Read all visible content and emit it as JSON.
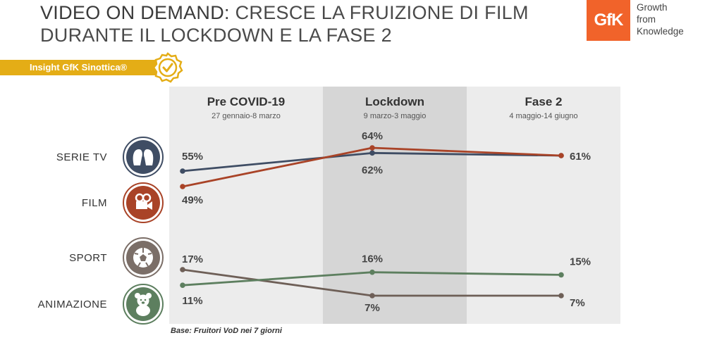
{
  "title": {
    "strong": "VIDEO ON DEMAND:",
    "rest": " CRESCE LA FRUIZIONE DI FILM DURANTE IL LOCKDOWN E LA FASE 2"
  },
  "logo": {
    "mark": "GfK",
    "tagline": [
      "Growth",
      "from",
      "Knowledge"
    ],
    "color": "#f1632a"
  },
  "banner": {
    "label": "Insight GfK Sinottica®",
    "badge_icon": "check-badge-icon",
    "color": "#e4ad16"
  },
  "base_note": "Base: Fruitori VoD nei 7 giorni",
  "chart_data": {
    "type": "line",
    "categories": [
      "Pre COVID-19",
      "Lockdown",
      "Fase 2"
    ],
    "category_dates": [
      "27 gennaio-8 marzo",
      "9 marzo-3 maggio",
      "4 maggio-14 giugno"
    ],
    "series": [
      {
        "name": "SERIE TV",
        "values": [
          55,
          62,
          61
        ],
        "labels": [
          "55%",
          "62%",
          "61%"
        ],
        "color": "#3f4d64",
        "icon": "two-faces-icon",
        "icon_bg": "#3f4d64"
      },
      {
        "name": "FILM",
        "values": [
          49,
          64,
          61
        ],
        "labels": [
          "49%",
          "64%",
          "61%"
        ],
        "color": "#a94327",
        "icon": "movie-camera-icon",
        "icon_bg": "#a94327"
      },
      {
        "name": "SPORT",
        "values": [
          17,
          7,
          7
        ],
        "labels": [
          "17%",
          "7%",
          "7%"
        ],
        "color": "#6e5f57",
        "icon": "soccer-ball-icon",
        "icon_bg": "#7b6e67"
      },
      {
        "name": "ANIMAZIONE",
        "values": [
          11,
          16,
          15
        ],
        "labels": [
          "11%",
          "16%",
          "15%"
        ],
        "color": "#5d7f5f",
        "icon": "teddy-bear-icon",
        "icon_bg": "#5d7f5f"
      }
    ],
    "column_colors": [
      "#ececec",
      "#d6d6d6",
      "#ececec"
    ]
  }
}
